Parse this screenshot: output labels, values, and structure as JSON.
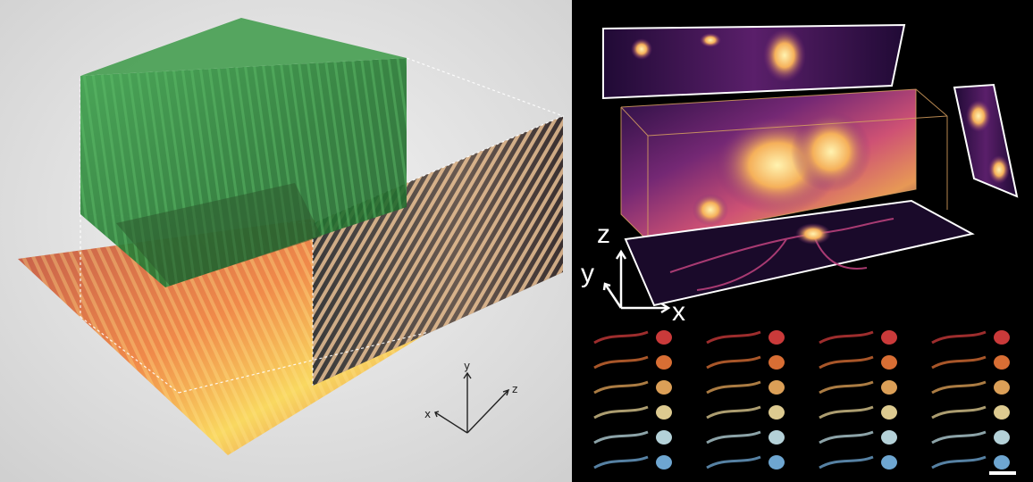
{
  "left_axes": {
    "x": "x",
    "y": "y",
    "z": "z"
  },
  "right_axes": {
    "x": "x",
    "y": "y",
    "z": "z"
  },
  "colors": {
    "left_background": "#e2e2e2",
    "volume_green": "#2f8a3e",
    "sheet_warm": "#f0a050",
    "right_background": "#000000",
    "inferno_hot": "#f7d26a",
    "inferno_mid": "#c2417a",
    "inferno_dark": "#3a1455"
  },
  "montage": {
    "columns": 4,
    "rows": 6
  }
}
